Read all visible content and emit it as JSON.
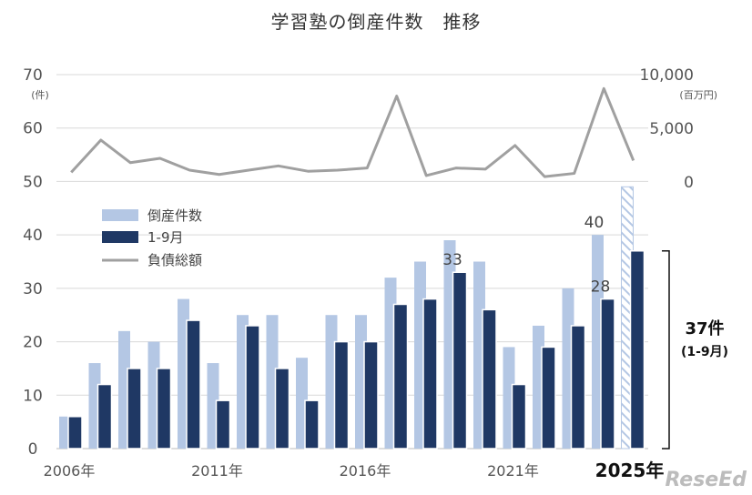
{
  "title": "学習塾の倒産件数　推移",
  "chart_data": {
    "type": "bar",
    "categories": [
      "2006",
      "2007",
      "2008",
      "2009",
      "2010",
      "2011",
      "2012",
      "2013",
      "2014",
      "2015",
      "2016",
      "2017",
      "2018",
      "2019",
      "2020",
      "2021",
      "2022",
      "2023",
      "2024",
      "2025"
    ],
    "x_tick_labels": [
      "2006年",
      "2011年",
      "2016年",
      "2021年"
    ],
    "last_category_label": "2025年",
    "series": [
      {
        "name": "倒産件数",
        "color": "#b4c7e4",
        "type": "bar",
        "values": [
          6,
          16,
          22,
          20,
          28,
          16,
          25,
          25,
          17,
          25,
          25,
          32,
          35,
          39,
          35,
          19,
          23,
          30,
          40,
          49
        ]
      },
      {
        "name": "1-9月",
        "color": "#1f3864",
        "type": "bar",
        "values": [
          6,
          12,
          15,
          15,
          24,
          9,
          23,
          15,
          9,
          20,
          20,
          27,
          28,
          33,
          26,
          12,
          19,
          23,
          28,
          37
        ]
      },
      {
        "name": "負債総額",
        "color": "#a0a0a0",
        "type": "line",
        "axis": "right",
        "values": [
          900,
          3900,
          1800,
          2200,
          1100,
          700,
          1100,
          1500,
          1000,
          1100,
          1300,
          8000,
          600,
          1300,
          1200,
          3400,
          500,
          800,
          8700,
          2000
        ]
      }
    ],
    "left_axis": {
      "ylim": [
        0,
        70
      ],
      "ticks": [
        0,
        10,
        20,
        30,
        40,
        50,
        60,
        70
      ],
      "unit": "(件)"
    },
    "right_axis": {
      "ylim": [
        0,
        10000
      ],
      "tick_labels": [
        "0",
        "5,000",
        "10,000"
      ],
      "unit": "(百万円)"
    },
    "data_labels": [
      {
        "series": "倒産件数",
        "category": "2024",
        "text": "40"
      },
      {
        "series": "1-9月",
        "category": "2024",
        "text": "28"
      },
      {
        "series": "1-9月",
        "category": "2019",
        "text": "33"
      }
    ],
    "forecast_hatched_category": "2025",
    "annotation": {
      "main": "37件",
      "sub": "(1-9月)"
    },
    "grid": true,
    "legend_position": "middle-left"
  },
  "watermark": "ReseEd"
}
